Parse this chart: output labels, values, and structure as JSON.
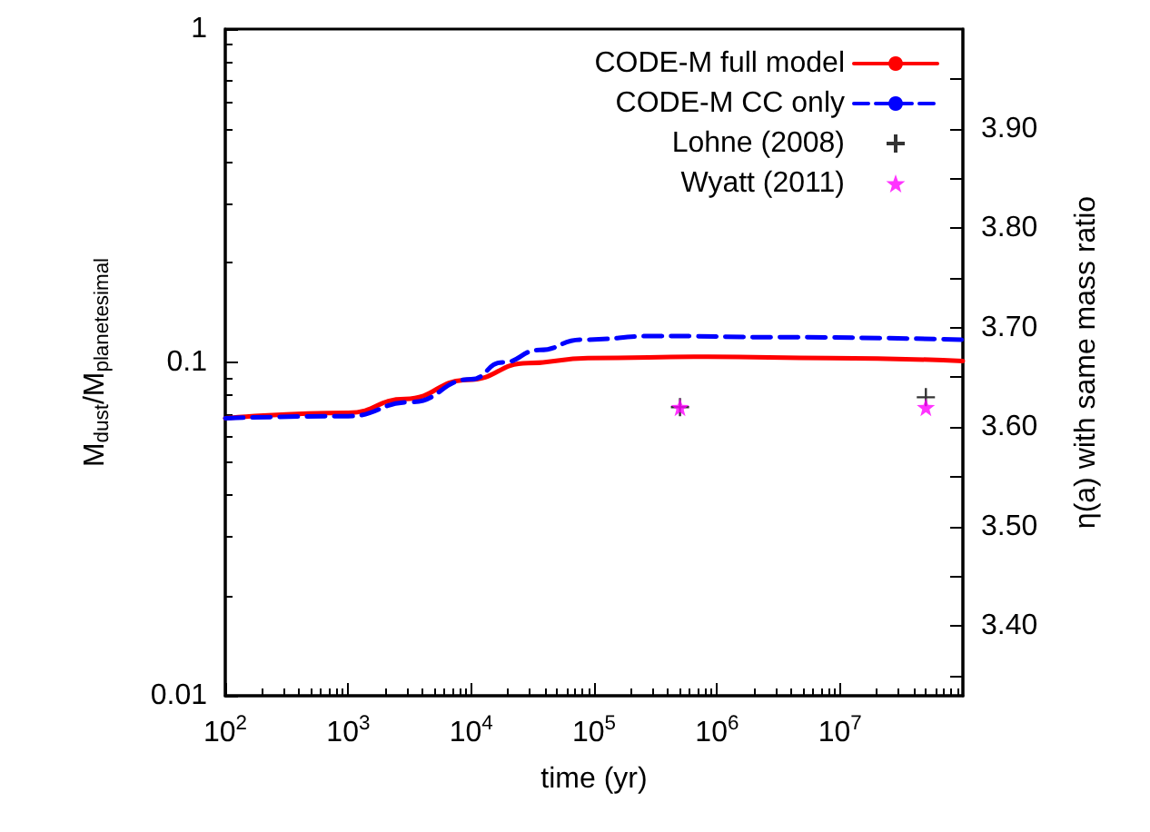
{
  "chart_data": {
    "type": "line",
    "xlabel": "time (yr)",
    "ylabel": "M$_{dust}$/M$_{planetesimal}$",
    "y2label": "η(a) with same mass ratio",
    "log": "xy",
    "xlim": [
      100,
      100000000
    ],
    "ylim": [
      0.01,
      1
    ],
    "y2lim": [
      3.33,
      4.0
    ],
    "xticks": [
      {
        "value": 100,
        "label": "10$^{2}$"
      },
      {
        "value": 1000,
        "label": "10$^{3}$"
      },
      {
        "value": 10000,
        "label": "10$^{4}$"
      },
      {
        "value": 100000,
        "label": "10$^{5}$"
      },
      {
        "value": 1000000,
        "label": "10$^{6}$"
      },
      {
        "value": 10000000,
        "label": "10$^{7}$"
      }
    ],
    "yticks": [
      0.01,
      0.1,
      1
    ],
    "y2ticks": [
      {
        "value": 3.35,
        "label": null
      },
      {
        "value": 3.4,
        "label": "3.40"
      },
      {
        "value": 3.45,
        "label": null
      },
      {
        "value": 3.5,
        "label": "3.50"
      },
      {
        "value": 3.55,
        "label": null
      },
      {
        "value": 3.6,
        "label": "3.60"
      },
      {
        "value": 3.65,
        "label": null
      },
      {
        "value": 3.7,
        "label": "3.70"
      },
      {
        "value": 3.75,
        "label": null
      },
      {
        "value": 3.8,
        "label": "3.80"
      },
      {
        "value": 3.85,
        "label": null
      },
      {
        "value": 3.9,
        "label": "3.90"
      },
      {
        "value": 3.95,
        "label": null
      }
    ],
    "grid": false,
    "legend": "top right",
    "series": [
      {
        "name": "CODE-M full model",
        "color": "#ff0000",
        "line_style": "solid",
        "marker": "none",
        "x": [
          100,
          1000,
          2900,
          9300,
          29000,
          89000,
          850000,
          8300000,
          100000000
        ],
        "values": [
          0.068,
          0.0706,
          0.0777,
          0.0886,
          0.0996,
          0.103,
          0.104,
          0.103,
          0.101
        ]
      },
      {
        "name": "CODE-M CC only",
        "color": "#0000ff",
        "line_style": "dashed",
        "marker": "none",
        "x": [
          100,
          1000,
          3200,
          10000,
          18000,
          36000,
          79000,
          320000,
          3200000,
          100000000
        ],
        "values": [
          0.068,
          0.069,
          0.076,
          0.089,
          0.1,
          0.109,
          0.117,
          0.12,
          0.119,
          0.117
        ]
      },
      {
        "name": "Lohne (2008)",
        "type": "scatter",
        "axis": "y2",
        "color": "#000000",
        "marker": "cross",
        "x": [
          500000,
          50000000
        ],
        "values": [
          3.62,
          3.63
        ]
      },
      {
        "name": "Wyatt (2011)",
        "type": "scatter",
        "axis": "y2",
        "color": "#ff00ff",
        "marker": "star",
        "x": [
          500000,
          50000000
        ],
        "values": [
          3.62,
          3.62
        ]
      }
    ]
  }
}
